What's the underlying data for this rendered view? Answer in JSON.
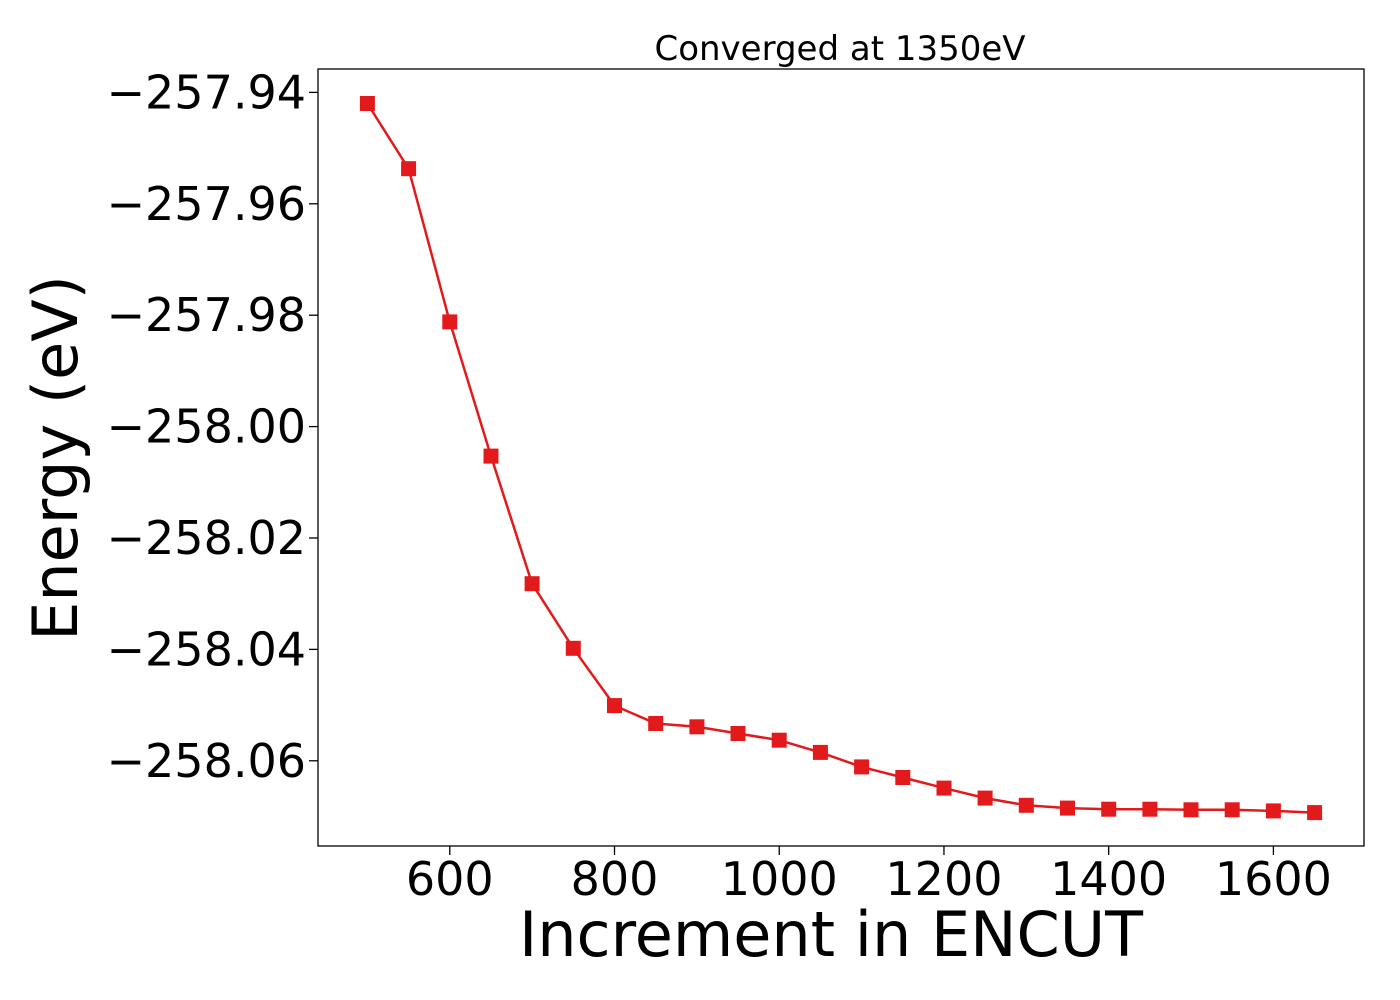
{
  "chart_data": {
    "type": "line",
    "title": "Converged at 1350eV",
    "xlabel": "Increment in ENCUT",
    "ylabel": "Energy (eV)",
    "xlim": [
      440,
      1710
    ],
    "ylim": [
      -258.0753,
      -257.9358
    ],
    "x_ticks": [
      600,
      800,
      1000,
      1200,
      1400,
      1600
    ],
    "x_tick_labels": [
      "600",
      "800",
      "1000",
      "1200",
      "1400",
      "1600"
    ],
    "y_ticks": [
      -257.94,
      -257.96,
      -257.98,
      -258.0,
      -258.02,
      -258.04,
      -258.06
    ],
    "y_tick_labels": [
      "−257.94",
      "−257.96",
      "−257.98",
      "−258.00",
      "−258.02",
      "−258.04",
      "−258.06"
    ],
    "grid": false,
    "series": [
      {
        "color": "#e31a1c",
        "marker": "square",
        "x": [
          500,
          550,
          600,
          650,
          700,
          750,
          800,
          850,
          900,
          950,
          1000,
          1050,
          1100,
          1150,
          1200,
          1250,
          1300,
          1350,
          1400,
          1450,
          1500,
          1550,
          1600,
          1650
        ],
        "values": [
          -257.942,
          -257.9537,
          -257.9812,
          -258.0053,
          -258.0282,
          -258.0398,
          -258.0501,
          -258.0533,
          -258.0539,
          -258.0551,
          -258.0563,
          -258.0585,
          -258.0611,
          -258.063,
          -258.0649,
          -258.0667,
          -258.068,
          -258.0685,
          -258.0687,
          -258.0687,
          -258.0688,
          -258.0688,
          -258.069,
          -258.0693
        ]
      }
    ]
  }
}
